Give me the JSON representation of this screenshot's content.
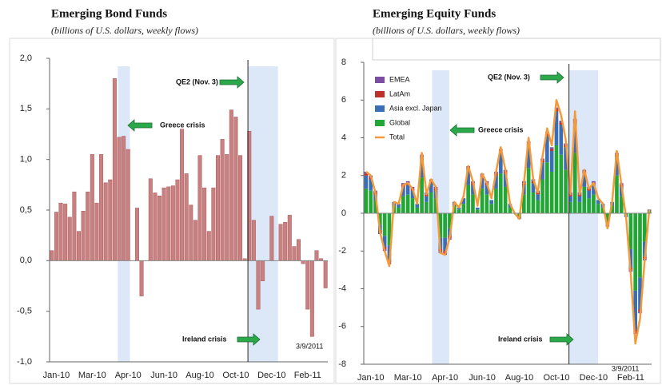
{
  "chart_data": [
    {
      "type": "bar",
      "title": "Emerging Bond Funds",
      "subtitle": "(billions of U.S. dollars, weekly flows)",
      "categories": [
        null,
        "Jan-10",
        null,
        null,
        null,
        null,
        null,
        null,
        null,
        "Mar-10",
        null,
        null,
        null,
        null,
        null,
        null,
        null,
        "Apr-10",
        null,
        null,
        null,
        null,
        null,
        null,
        null,
        "Jun-10",
        null,
        null,
        null,
        null,
        null,
        null,
        null,
        "Aug-10",
        null,
        null,
        null,
        null,
        null,
        null,
        null,
        "Oct-10",
        null,
        null,
        null,
        null,
        null,
        null,
        null,
        "Dec-10",
        null,
        null,
        null,
        null,
        null,
        null,
        null,
        "Feb-11",
        null,
        null,
        null,
        null
      ],
      "values": [
        0.1,
        0.48,
        0.57,
        0.56,
        0.43,
        0.68,
        0.29,
        0.49,
        0.68,
        1.05,
        0.57,
        1.05,
        0.77,
        0.8,
        1.8,
        1.22,
        1.23,
        1.1,
        0.0,
        0.52,
        -0.35,
        0.0,
        0.81,
        0.67,
        0.64,
        0.72,
        0.73,
        0.74,
        0.8,
        1.3,
        0.86,
        0.55,
        0.4,
        1.04,
        0.72,
        0.29,
        0.72,
        1.04,
        1.2,
        1.05,
        1.49,
        1.42,
        1.04,
        0.02,
        1.28,
        0.4,
        -0.48,
        -0.2,
        0.0,
        0.44,
        0.0,
        0.36,
        0.38,
        0.45,
        0.14,
        0.21,
        -0.03,
        -0.48,
        -0.75,
        0.1,
        0.02,
        -0.27
      ],
      "color": "#c98080",
      "ylim": [
        -1,
        2
      ],
      "yticks": [
        {
          "value": 2,
          "label": "2,0"
        },
        {
          "value": 1.5,
          "label": "1,5"
        },
        {
          "value": 1,
          "label": "1,0"
        },
        {
          "value": 0.5,
          "label": "0,5"
        },
        {
          "value": 0,
          "label": "0,0"
        },
        {
          "value": -0.5,
          "label": "-0,5"
        },
        {
          "value": -1,
          "label": "-1,0"
        }
      ],
      "annotations": [
        "QE2 (Nov. 3)",
        "Greece crisis",
        "Ireland crisis",
        "3/9/2011"
      ]
    },
    {
      "type": "stackedbar",
      "title": "Emerging Equity Funds",
      "subtitle": "(billions of U.S. dollars, weekly flows)",
      "categories": [
        null,
        "Jan-10",
        null,
        null,
        null,
        null,
        null,
        null,
        null,
        "Mar-10",
        null,
        null,
        null,
        null,
        null,
        null,
        null,
        "Apr-10",
        null,
        null,
        null,
        null,
        null,
        null,
        null,
        "Jun-10",
        null,
        null,
        null,
        null,
        null,
        null,
        null,
        "Aug-10",
        null,
        null,
        null,
        null,
        null,
        null,
        null,
        "Oct-10",
        null,
        null,
        null,
        null,
        null,
        null,
        null,
        "Dec-10",
        null,
        null,
        null,
        null,
        null,
        null,
        null,
        "Feb-11",
        null,
        null,
        null,
        null
      ],
      "series": [
        {
          "name": "EMEA",
          "color": "#7b4ea3",
          "values": [
            0.1,
            0.1,
            0.1,
            -0.1,
            -0.1,
            -0.1,
            0,
            0,
            0.1,
            0.1,
            0.1,
            0,
            0.1,
            0.1,
            0.1,
            0.1,
            -0.1,
            -0.1,
            -0.1,
            0,
            0,
            0,
            0.1,
            0.1,
            0,
            0.1,
            0.1,
            0,
            0.1,
            0.1,
            0.1,
            0,
            0,
            0,
            0.1,
            0.1,
            0.1,
            0.1,
            0.1,
            0.1,
            0.1,
            0.1,
            0.1,
            0.1,
            0.1,
            0.1,
            0.1,
            0.1,
            0.1,
            0.1,
            0,
            0,
            0,
            0,
            0.1,
            0.1,
            0,
            -0.1,
            -0.1,
            -0.1,
            -0.1,
            0
          ]
        },
        {
          "name": "LatAm",
          "color": "#c0302a",
          "values": [
            0.1,
            0.1,
            0.1,
            -0.1,
            -0.1,
            -0.1,
            0,
            0,
            0.1,
            0.1,
            0.1,
            0,
            0.1,
            0.1,
            0.1,
            0.1,
            -0.1,
            -0.1,
            -0.1,
            0,
            0,
            0,
            0.1,
            0.1,
            0,
            0.1,
            0.1,
            0,
            0.1,
            0.1,
            0.1,
            0,
            0,
            0,
            0.1,
            0.1,
            0.1,
            0.1,
            0.1,
            0.1,
            0.1,
            0.1,
            0.1,
            0.1,
            0.1,
            0.1,
            0.1,
            0.1,
            0.1,
            0.1,
            0,
            0,
            0,
            0,
            0.1,
            0.1,
            0,
            -0.1,
            -0.1,
            -0.1,
            -0.1,
            0
          ]
        },
        {
          "name": "Asia excl. Japan",
          "color": "#3a6fb5",
          "values": [
            0.7,
            0.6,
            0.3,
            -0.3,
            -0.6,
            -0.8,
            0.2,
            0.2,
            0.5,
            0.5,
            0.4,
            0.2,
            1.0,
            0.3,
            0.5,
            0.4,
            -0.6,
            -0.7,
            -0.4,
            0.2,
            0.1,
            0.3,
            0.8,
            0.5,
            0.1,
            0.6,
            0.5,
            0.2,
            0.7,
            1.1,
            0.7,
            0.2,
            0.0,
            -0.1,
            0.5,
            1.2,
            0.5,
            0.3,
            0.9,
            1.4,
            1.1,
            1.8,
            1.6,
            1.2,
            0.3,
            1.6,
            0.3,
            0.7,
            0.4,
            0.5,
            0.2,
            0.2,
            -0.2,
            0.2,
            1.0,
            0.5,
            -0.1,
            -1.0,
            -2.1,
            -1.7,
            -0.8,
            0.1
          ]
        },
        {
          "name": "Global",
          "color": "#22a636",
          "values": [
            1.3,
            1.2,
            0.7,
            -0.6,
            -1.2,
            -1.7,
            0.4,
            0.3,
            0.9,
            1.0,
            0.8,
            0.3,
            1.9,
            0.6,
            1.1,
            0.8,
            -1.3,
            -1.3,
            -0.8,
            0.4,
            0.2,
            0.5,
            1.5,
            1.0,
            0.2,
            1.3,
            1.0,
            0.5,
            1.3,
            2.1,
            1.4,
            0.3,
            0.0,
            -0.2,
            1.0,
            2.4,
            1.1,
            0.7,
            1.8,
            2.7,
            2.2,
            3.6,
            3.1,
            2.3,
            0.6,
            3.2,
            0.6,
            1.4,
            0.8,
            1.0,
            0.5,
            0.3,
            -0.5,
            0.4,
            2.0,
            0.9,
            -0.1,
            -1.9,
            -4.1,
            -3.4,
            -1.5,
            0.1
          ]
        },
        {
          "name": "Total",
          "color": "#f59a3a",
          "type": "line",
          "values": [
            2.2,
            2.0,
            1.1,
            -1.0,
            -2.0,
            -2.8,
            0.6,
            0.5,
            1.5,
            1.6,
            1.3,
            0.5,
            3.2,
            1.0,
            1.8,
            1.4,
            -2.1,
            -2.2,
            -1.3,
            0.6,
            0.3,
            0.9,
            2.5,
            1.7,
            0.4,
            2.1,
            1.6,
            0.8,
            2.2,
            3.5,
            2.3,
            0.5,
            0.0,
            -0.3,
            1.6,
            4.0,
            1.8,
            1.1,
            3.0,
            4.5,
            3.6,
            6.0,
            5.2,
            3.9,
            1.0,
            5.4,
            1.0,
            2.3,
            1.3,
            1.6,
            0.8,
            0.5,
            -0.8,
            0.6,
            3.3,
            1.5,
            -0.2,
            -3.2,
            -6.9,
            -5.6,
            -2.5,
            0.2
          ]
        }
      ],
      "ylim": [
        -8,
        8
      ],
      "yticks": [
        8,
        6,
        4,
        2,
        0,
        -2,
        -4,
        -6,
        -8
      ],
      "annotations": [
        "QE2 (Nov. 3)",
        "Greece crisis",
        "Ireland crisis",
        "3/9/2011"
      ]
    }
  ]
}
